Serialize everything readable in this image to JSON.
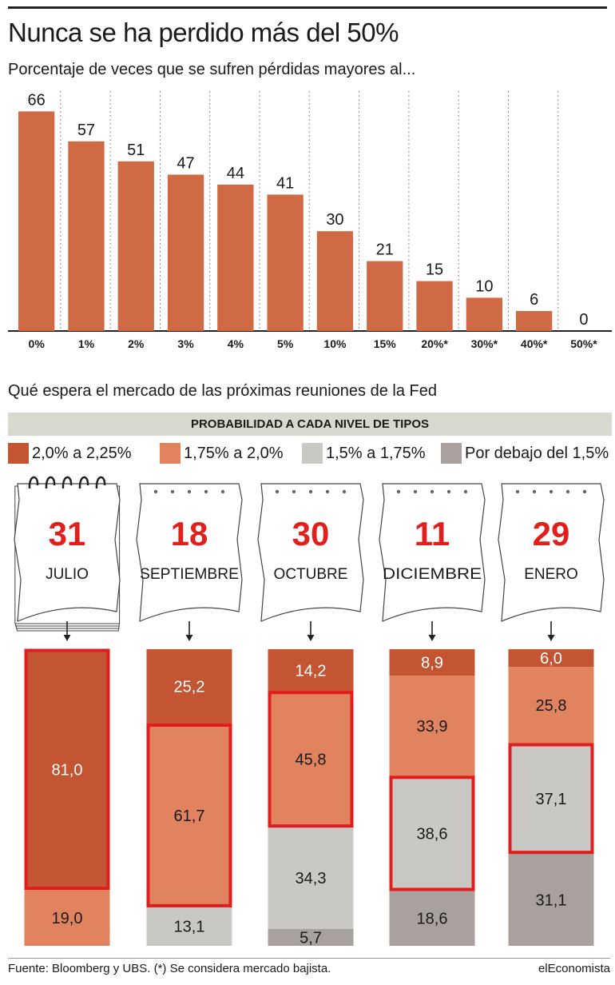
{
  "title": "Nunca se ha perdido más del 50%",
  "subtitle": "Porcentaje de veces que se sufren pérdidas mayores al...",
  "chart_data": [
    {
      "type": "bar",
      "categories": [
        "0%",
        "1%",
        "2%",
        "3%",
        "4%",
        "5%",
        "10%",
        "15%",
        "20%*",
        "30%*",
        "40%*",
        "50%*"
      ],
      "values": [
        66,
        57,
        51,
        47,
        44,
        41,
        30,
        21,
        15,
        10,
        6,
        0
      ],
      "ylim": [
        0,
        70
      ],
      "grid": "vertical dotted separators",
      "bar_color": "#cf6a45"
    },
    {
      "type": "bar",
      "stacked": true,
      "title": "Qué espera el mercado de las próximas reuniones de la Fed",
      "subtitle": "PROBABILIDAD A CADA NIVEL DE TIPOS",
      "categories": [
        {
          "day": "31",
          "month": "JULIO"
        },
        {
          "day": "18",
          "month": "SEPTIEMBRE"
        },
        {
          "day": "30",
          "month": "OCTUBRE"
        },
        {
          "day": "11",
          "month": "DICIEMBRE"
        },
        {
          "day": "29",
          "month": "ENERO"
        }
      ],
      "series": [
        {
          "name": "2,0% a 2,25%",
          "color": "#c45532",
          "values": [
            "81,0",
            "25,2",
            "14,2",
            "8,9",
            "6,0"
          ],
          "numeric": [
            81.0,
            25.2,
            14.2,
            8.9,
            6.0
          ]
        },
        {
          "name": "1,75% a 2,0%",
          "color": "#e0835e",
          "values": [
            "19,0",
            "61,7",
            "45,8",
            "33,9",
            "25,8"
          ],
          "numeric": [
            19.0,
            61.7,
            45.8,
            33.9,
            25.8
          ]
        },
        {
          "name": "1,5% a 1,75%",
          "color": "#c9c8c5",
          "values": [
            "",
            "13,1",
            "34,3",
            "38,6",
            "37,1"
          ],
          "numeric": [
            0,
            13.1,
            34.3,
            38.6,
            37.1
          ]
        },
        {
          "name": "Por debajo del 1,5%",
          "color": "#a9a19d",
          "values": [
            "",
            "",
            "5,7",
            "18,6",
            "31,1"
          ],
          "numeric": [
            0,
            0,
            5.7,
            18.6,
            31.1
          ]
        }
      ],
      "highlight_series_index": [
        0,
        1,
        1,
        2,
        2
      ],
      "highlight_color": "#e01e1e",
      "ylim": [
        0,
        100
      ]
    }
  ],
  "footer": {
    "source": "Fuente: Bloomberg y UBS. (*) Se considera mercado bajista.",
    "brand": "elEconomista"
  }
}
